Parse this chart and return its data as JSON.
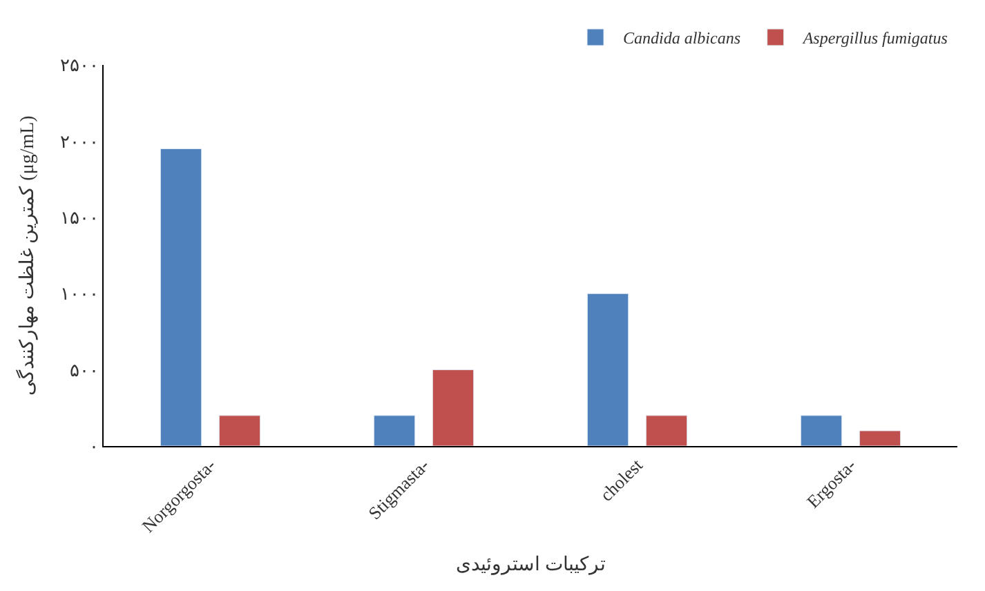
{
  "chart_data": {
    "type": "bar",
    "categories": [
      "Norgorgosta-",
      "Stigmasta-",
      "cholest",
      "Ergosta-"
    ],
    "series": [
      {
        "name": "Candida albicans",
        "color": "#4f81bd",
        "values": [
          1950,
          200,
          1000,
          200
        ]
      },
      {
        "name": "Aspergillus fumigatus",
        "color": "#c0504d",
        "values": [
          200,
          500,
          200,
          100
        ]
      }
    ],
    "xlabel": "ترکیبات استروئیدی",
    "ylabel": "کمترین غلظت مهارکنندگی (μg/mL)",
    "ylim": [
      0,
      2500
    ],
    "yticks": [
      {
        "value": 0,
        "label": "۰"
      },
      {
        "value": 500,
        "label": "۵۰۰"
      },
      {
        "value": 1000,
        "label": "۱۰۰۰"
      },
      {
        "value": 1500,
        "label": "۱۵۰۰"
      },
      {
        "value": 2000,
        "label": "۲۰۰۰"
      },
      {
        "value": 2500,
        "label": "۲۵۰۰"
      }
    ],
    "legend": "top right"
  }
}
